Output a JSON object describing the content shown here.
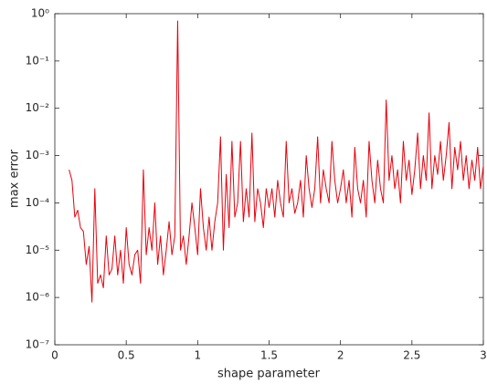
{
  "chart_data": {
    "type": "line",
    "xlabel": "shape parameter",
    "ylabel": "max error",
    "log_y": true,
    "xlim": [
      0,
      3
    ],
    "ylim": [
      1e-07,
      1
    ],
    "xticks": [
      0,
      0.5,
      1,
      1.5,
      2,
      2.5,
      3
    ],
    "yticks": [
      {
        "value": 1e-07,
        "label": "10⁻⁷"
      },
      {
        "value": 1e-06,
        "label": "10⁻⁶"
      },
      {
        "value": 1e-05,
        "label": "10⁻⁵"
      },
      {
        "value": 0.0001,
        "label": "10⁻⁴"
      },
      {
        "value": 0.001,
        "label": "10⁻³"
      },
      {
        "value": 0.01,
        "label": "10⁻²"
      },
      {
        "value": 0.1,
        "label": "10⁻¹"
      },
      {
        "value": 1,
        "label": "10⁰"
      }
    ],
    "x": [
      0.1,
      0.12,
      0.14,
      0.16,
      0.18,
      0.2,
      0.22,
      0.24,
      0.26,
      0.28,
      0.3,
      0.32,
      0.34,
      0.36,
      0.38,
      0.4,
      0.42,
      0.44,
      0.46,
      0.48,
      0.5,
      0.52,
      0.54,
      0.56,
      0.58,
      0.6,
      0.62,
      0.64,
      0.66,
      0.68,
      0.7,
      0.72,
      0.74,
      0.76,
      0.78,
      0.8,
      0.82,
      0.84,
      0.86,
      0.88,
      0.9,
      0.92,
      0.94,
      0.96,
      0.98,
      1.0,
      1.02,
      1.04,
      1.06,
      1.08,
      1.1,
      1.12,
      1.14,
      1.16,
      1.18,
      1.2,
      1.22,
      1.24,
      1.26,
      1.28,
      1.3,
      1.32,
      1.34,
      1.36,
      1.38,
      1.4,
      1.42,
      1.44,
      1.46,
      1.48,
      1.5,
      1.52,
      1.54,
      1.56,
      1.58,
      1.6,
      1.62,
      1.64,
      1.66,
      1.68,
      1.7,
      1.72,
      1.74,
      1.76,
      1.78,
      1.8,
      1.82,
      1.84,
      1.86,
      1.88,
      1.9,
      1.92,
      1.94,
      1.96,
      1.98,
      2.0,
      2.02,
      2.04,
      2.06,
      2.08,
      2.1,
      2.12,
      2.14,
      2.16,
      2.18,
      2.2,
      2.22,
      2.24,
      2.26,
      2.28,
      2.3,
      2.32,
      2.34,
      2.36,
      2.38,
      2.4,
      2.42,
      2.44,
      2.46,
      2.48,
      2.5,
      2.52,
      2.54,
      2.56,
      2.58,
      2.6,
      2.62,
      2.64,
      2.66,
      2.68,
      2.7,
      2.72,
      2.74,
      2.76,
      2.78,
      2.8,
      2.82,
      2.84,
      2.86,
      2.88,
      2.9,
      2.92,
      2.94,
      2.96,
      2.98,
      3.0
    ],
    "series": [
      {
        "color": "#e8000b",
        "values": [
          0.0005,
          0.0003,
          5e-05,
          7e-05,
          3e-05,
          2.5e-05,
          5e-06,
          1.2e-05,
          8e-07,
          0.0002,
          2e-06,
          3e-06,
          1.6e-06,
          2e-05,
          3e-06,
          4e-06,
          2e-05,
          3e-06,
          1e-05,
          2e-06,
          3e-05,
          5e-06,
          3e-06,
          8e-06,
          1e-05,
          2e-06,
          0.0005,
          8e-06,
          3e-05,
          1e-05,
          0.0001,
          5e-06,
          2e-05,
          3e-06,
          1e-05,
          4e-05,
          8e-06,
          2e-05,
          0.7,
          1e-05,
          2e-05,
          5e-06,
          2e-05,
          0.0001,
          3e-05,
          8e-06,
          0.0002,
          3e-05,
          1e-05,
          5e-05,
          1e-05,
          4e-05,
          0.0001,
          0.0025,
          1e-05,
          0.0004,
          3e-05,
          0.002,
          5e-05,
          0.0001,
          0.002,
          4e-05,
          0.0002,
          5e-05,
          0.003,
          4e-05,
          0.0002,
          0.0001,
          3e-05,
          0.0002,
          8e-05,
          0.0002,
          5e-05,
          0.0003,
          0.0001,
          5e-05,
          0.002,
          0.0001,
          0.0002,
          6e-05,
          0.0001,
          0.0003,
          5e-05,
          0.001,
          0.0002,
          8e-05,
          0.0002,
          0.0025,
          0.0001,
          0.0005,
          0.0002,
          0.0001,
          0.002,
          0.0003,
          0.0001,
          0.0002,
          0.0005,
          0.0001,
          0.0003,
          5e-05,
          0.0015,
          0.0002,
          0.0001,
          0.0003,
          5e-05,
          0.002,
          0.0003,
          0.0001,
          0.0008,
          0.0002,
          0.0001,
          0.015,
          0.0003,
          0.001,
          0.0002,
          0.0005,
          0.0001,
          0.002,
          0.0003,
          0.0008,
          0.00015,
          0.0005,
          0.003,
          0.0002,
          0.001,
          0.0003,
          0.008,
          0.0002,
          0.001,
          0.0004,
          0.002,
          0.0003,
          0.001,
          0.005,
          0.0002,
          0.0015,
          0.0005,
          0.002,
          0.0003,
          0.001,
          0.0002,
          0.0008,
          0.0003,
          0.0015,
          0.0002,
          0.0006
        ]
      }
    ]
  }
}
